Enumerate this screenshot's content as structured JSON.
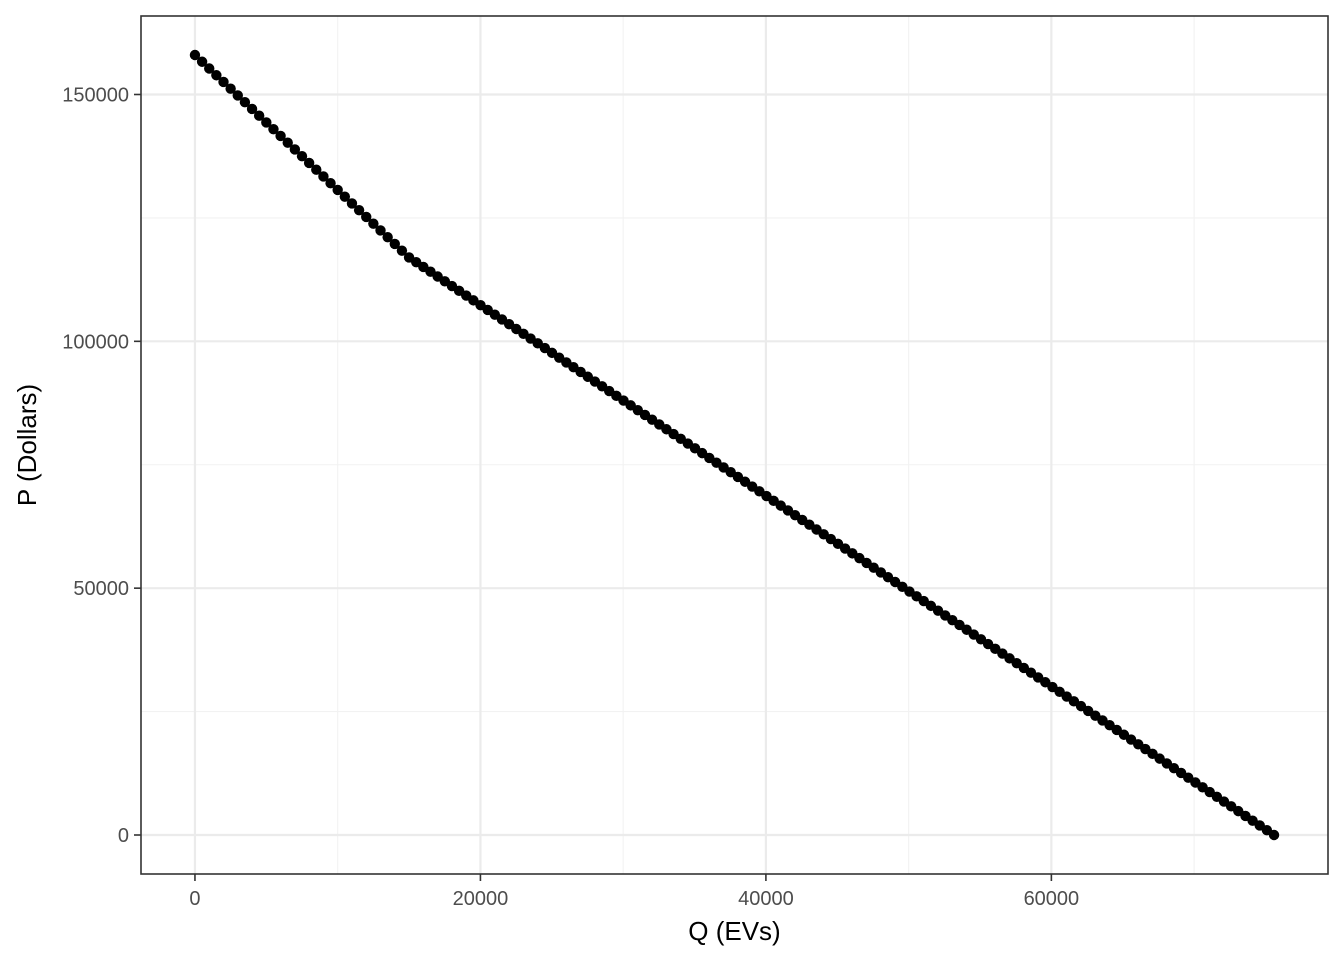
{
  "chart_data": {
    "type": "scatter",
    "xlabel": "Q (EVs)",
    "ylabel": "P (Dollars)",
    "xlim": [
      -3780,
      79380
    ],
    "ylim": [
      -7900,
      165900
    ],
    "x_ticks": [
      0,
      20000,
      40000,
      60000
    ],
    "x_tick_labels": [
      "0",
      "20000",
      "40000",
      "60000"
    ],
    "y_ticks": [
      0,
      50000,
      100000,
      150000
    ],
    "y_tick_labels": [
      "0",
      "50000",
      "100000",
      "150000"
    ],
    "x_minor_ticks": [
      10000,
      30000,
      50000,
      70000
    ],
    "y_minor_ticks": [
      25000,
      75000,
      125000
    ],
    "grid": true,
    "theme": "bw",
    "point_color": "#000000",
    "series": [
      {
        "segments": [
          {
            "x_start": 0,
            "x_end": 15000,
            "y_start": 158000,
            "y_end": 117000
          },
          {
            "x_start": 15000,
            "x_end": 75600,
            "y_start": 117000,
            "y_end": 0
          }
        ],
        "x_step": 500
      }
    ]
  }
}
